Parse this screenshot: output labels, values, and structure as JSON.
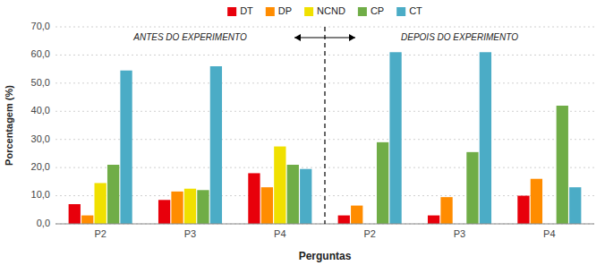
{
  "chart_data": {
    "type": "bar",
    "categories": [
      "P2",
      "P3",
      "P4",
      "P2",
      "P3",
      "P4"
    ],
    "series": [
      {
        "name": "DT",
        "color": "#e8000b",
        "values": [
          7.0,
          8.5,
          18.0,
          3.0,
          3.0,
          10.0
        ]
      },
      {
        "name": "DP",
        "color": "#ff8c00",
        "values": [
          3.0,
          11.5,
          13.0,
          6.5,
          9.5,
          16.0
        ]
      },
      {
        "name": "NCND",
        "color": "#f0e000",
        "values": [
          14.5,
          12.5,
          27.5,
          0.0,
          0.0,
          0.0
        ]
      },
      {
        "name": "CP",
        "color": "#70ad47",
        "values": [
          21.0,
          12.0,
          21.0,
          29.0,
          25.5,
          42.0
        ]
      },
      {
        "name": "CT",
        "color": "#4bacc6",
        "values": [
          54.5,
          56.0,
          19.5,
          61.0,
          61.0,
          13.0
        ]
      }
    ],
    "x_label": "Perguntas",
    "y_label": "Porcentagem (%)",
    "ylim": [
      0,
      70
    ],
    "yticks": [
      {
        "value": 0,
        "label": "0,0"
      },
      {
        "value": 10,
        "label": "10,0"
      },
      {
        "value": 20,
        "label": "20,0"
      },
      {
        "value": 30,
        "label": "30,0"
      },
      {
        "value": 40,
        "label": "40,0"
      },
      {
        "value": 50,
        "label": "50,0"
      },
      {
        "value": 60,
        "label": "60,0"
      },
      {
        "value": 70,
        "label": "70,0"
      }
    ],
    "annotations": [
      "ANTES DO EXPERIMENTO",
      "DEPOIS DO EXPERIMENTO"
    ],
    "grid": true,
    "legend": "top"
  }
}
